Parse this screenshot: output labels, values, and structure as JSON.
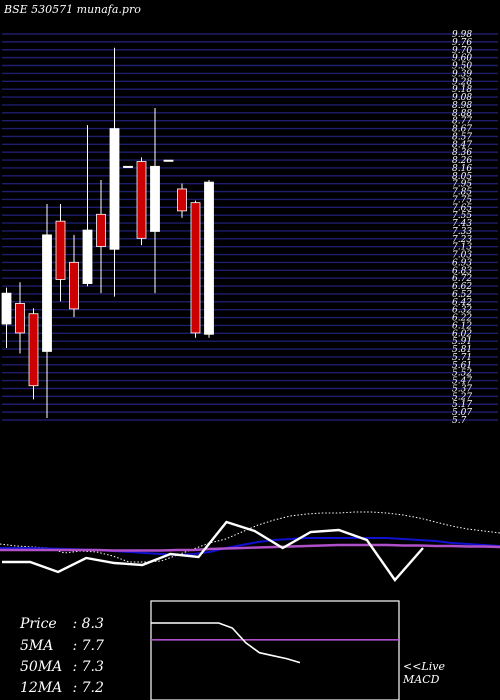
{
  "header": "BSE 530571 munafa.pro",
  "colors": {
    "background": "#000000",
    "grid": "#1e1e6e",
    "up_candle": "#ffffff",
    "down_candle": "#cc0000",
    "ma_blue": "#1010d0",
    "ma_violet": "#b050c8",
    "oscillator": "#ffffff"
  },
  "chart_data": [
    {
      "type": "candlestick",
      "price_labels": [
        "9.98",
        "9.76",
        "9.70",
        "9.60",
        "9.50",
        "9.39",
        "9.28",
        "9.18",
        "9.08",
        "8.98",
        "8.88",
        "8.77",
        "8.67",
        "8.57",
        "8.47",
        "8.36",
        "8.26",
        "8.16",
        "8.05",
        "7.95",
        "7.85",
        "7.75",
        "7.65",
        "7.55",
        "7.43",
        "7.33",
        "7.23",
        "7.13",
        "7.03",
        "6.93",
        "6.83",
        "6.72",
        "6.62",
        "6.52",
        "6.42",
        "6.32",
        "6.22",
        "6.12",
        "6.02",
        "5.91",
        "5.81",
        "5.71",
        "5.61",
        "5.52",
        "5.47",
        "5.37",
        "5.27",
        "5.17",
        "5.07",
        "5.7"
      ],
      "candles": [
        {
          "open": 5.75,
          "close": 6.2,
          "high": 6.28,
          "low": 5.4
        },
        {
          "open": 6.05,
          "close": 5.62,
          "high": 6.36,
          "low": 5.32
        },
        {
          "open": 5.9,
          "close": 4.85,
          "high": 5.98,
          "low": 4.65
        },
        {
          "open": 5.35,
          "close": 7.05,
          "high": 7.5,
          "low": 4.38
        },
        {
          "open": 7.25,
          "close": 6.4,
          "high": 7.5,
          "low": 6.08
        },
        {
          "open": 6.65,
          "close": 5.97,
          "high": 7.05,
          "low": 5.85
        },
        {
          "open": 6.34,
          "close": 7.12,
          "high": 8.65,
          "low": 6.3
        },
        {
          "open": 7.35,
          "close": 6.88,
          "high": 7.85,
          "low": 6.2
        },
        {
          "open": 6.84,
          "close": 8.6,
          "high": 9.78,
          "low": 6.15
        },
        {
          "open": 8.05,
          "close": 8.05,
          "high": 8.05,
          "low": 8.05
        },
        {
          "open": 8.12,
          "close": 7.0,
          "high": 8.18,
          "low": 6.9
        },
        {
          "open": 7.1,
          "close": 8.05,
          "high": 8.9,
          "low": 6.2
        },
        {
          "open": 8.14,
          "close": 8.14,
          "high": 8.14,
          "low": 8.14
        },
        {
          "open": 7.72,
          "close": 7.4,
          "high": 7.8,
          "low": 7.3
        },
        {
          "open": 7.52,
          "close": 5.62,
          "high": 7.55,
          "low": 5.55
        },
        {
          "open": 5.6,
          "close": 7.82,
          "high": 7.85,
          "low": 5.55
        }
      ]
    },
    {
      "type": "line",
      "series": [
        {
          "values": [
            56,
            54,
            53,
            52,
            47,
            49,
            48,
            44,
            38,
            38,
            39,
            45,
            51,
            57,
            61,
            68,
            75,
            80,
            84,
            86,
            87,
            87,
            88,
            88,
            87,
            85,
            82,
            78,
            74,
            71,
            69,
            67
          ]
        },
        {
          "values": [
            52,
            52,
            52,
            51.5,
            51,
            50.5,
            50,
            49,
            48,
            47,
            46,
            45,
            46,
            48,
            52,
            55,
            58,
            60,
            61,
            62,
            62,
            62,
            62,
            62,
            62,
            61,
            60,
            59,
            57,
            56,
            55,
            54
          ]
        },
        {
          "values": [
            50,
            50,
            50,
            50,
            50,
            50,
            50,
            49.5,
            49.5,
            49.5,
            49.5,
            50,
            50,
            51,
            51.5,
            52,
            52.5,
            53,
            53.5,
            54,
            54.5,
            55,
            55,
            55,
            55,
            54.5,
            54.5,
            54,
            54,
            53.5,
            53.5,
            53
          ]
        },
        {
          "values": [
            38,
            38,
            28,
            42,
            37,
            35,
            46,
            43,
            78,
            69,
            52,
            68,
            70,
            60,
            20,
            52
          ]
        }
      ]
    },
    {
      "type": "line",
      "series": [
        {
          "values": [
            83,
            83,
            83,
            83,
            83,
            83,
            83,
            83,
            83,
            83,
            83,
            83,
            83,
            83,
            83,
            83,
            83,
            83,
            83,
            83,
            83,
            83,
            83,
            83,
            83,
            83,
            83,
            83,
            83,
            83
          ]
        },
        {
          "values": [
            100,
            100,
            100,
            100,
            100,
            100,
            95,
            80,
            70,
            67,
            64,
            60
          ]
        }
      ]
    }
  ],
  "stats": [
    {
      "label": "Price",
      "value": ": 8.3"
    },
    {
      "label": "5MA",
      "value": ": 7.7"
    },
    {
      "label": "50MA",
      "value": ": 7.3"
    },
    {
      "label": "12MA",
      "value": ": 7.2"
    }
  ],
  "macd_labels": [
    "<<Live",
    "MACD"
  ]
}
